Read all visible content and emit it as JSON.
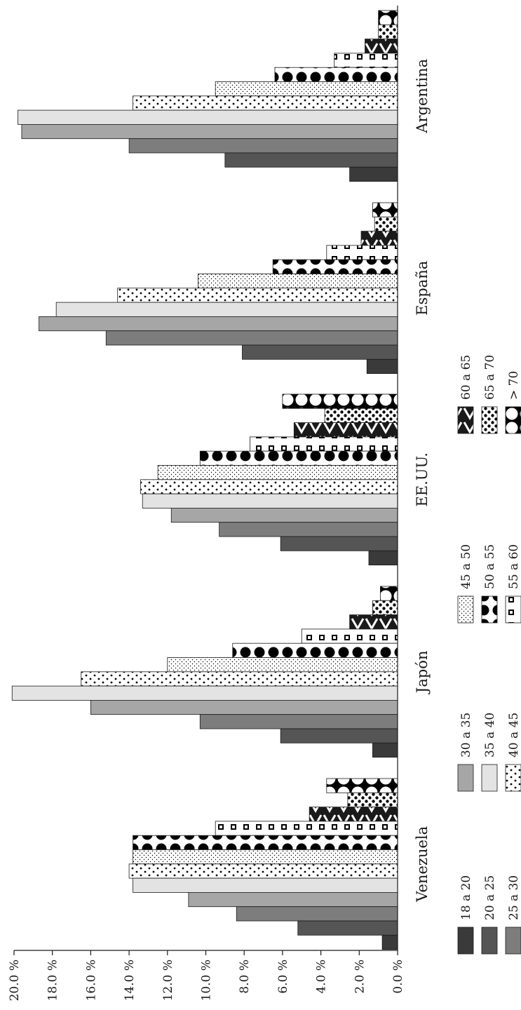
{
  "chart_data": {
    "type": "bar",
    "orientation": "horizontal (rotated page)",
    "categories": [
      "Argentina",
      "España",
      "EE.UU.",
      "Japón",
      "Venezuela"
    ],
    "ylim": [
      0,
      20
    ],
    "y_ticks": [
      "0.0 %",
      "2.0 %",
      "4.0 %",
      "6.0 %",
      "8.0 %",
      "10.0 %",
      "12.0 %",
      "14.0 %",
      "16.0 %",
      "18.0 %",
      "20.0 %"
    ],
    "grid": false,
    "legend_position": "right",
    "series": [
      {
        "name": "18 a 20",
        "values": [
          2.5,
          1.6,
          1.5,
          1.3,
          0.8
        ]
      },
      {
        "name": "20 a 25",
        "values": [
          9.0,
          8.1,
          6.1,
          6.1,
          5.2
        ]
      },
      {
        "name": "25 a 30",
        "values": [
          14.0,
          15.2,
          9.3,
          10.3,
          8.4
        ]
      },
      {
        "name": "30 a 35",
        "values": [
          19.6,
          18.7,
          11.8,
          16.0,
          10.9
        ]
      },
      {
        "name": "35 a 40",
        "values": [
          19.8,
          17.8,
          13.3,
          20.1,
          13.8
        ]
      },
      {
        "name": "40 a 45",
        "values": [
          13.8,
          14.6,
          13.4,
          16.5,
          14.0
        ]
      },
      {
        "name": "45 a 50",
        "values": [
          9.5,
          10.4,
          12.5,
          12.0,
          13.8
        ]
      },
      {
        "name": "50 a 55",
        "values": [
          6.4,
          6.5,
          10.3,
          8.6,
          13.8
        ]
      },
      {
        "name": "55 a 60",
        "values": [
          3.3,
          3.7,
          7.7,
          5.0,
          9.5
        ]
      },
      {
        "name": "60 a 65",
        "values": [
          1.7,
          1.9,
          5.4,
          2.5,
          4.6
        ]
      },
      {
        "name": "65 a 70",
        "values": [
          1.0,
          1.2,
          3.8,
          1.3,
          2.6
        ]
      },
      {
        "name": "> 70",
        "values": [
          1.0,
          1.3,
          6.0,
          0.9,
          3.7
        ]
      }
    ],
    "series_fills": [
      "#3a3a3a",
      "#555555",
      "#7d7d7d",
      "#a6a6a6",
      "#e3e3e3",
      "dots-large",
      "dots-small",
      "blobs",
      "squares",
      "chevrons",
      "dots-dense",
      "circles"
    ]
  }
}
